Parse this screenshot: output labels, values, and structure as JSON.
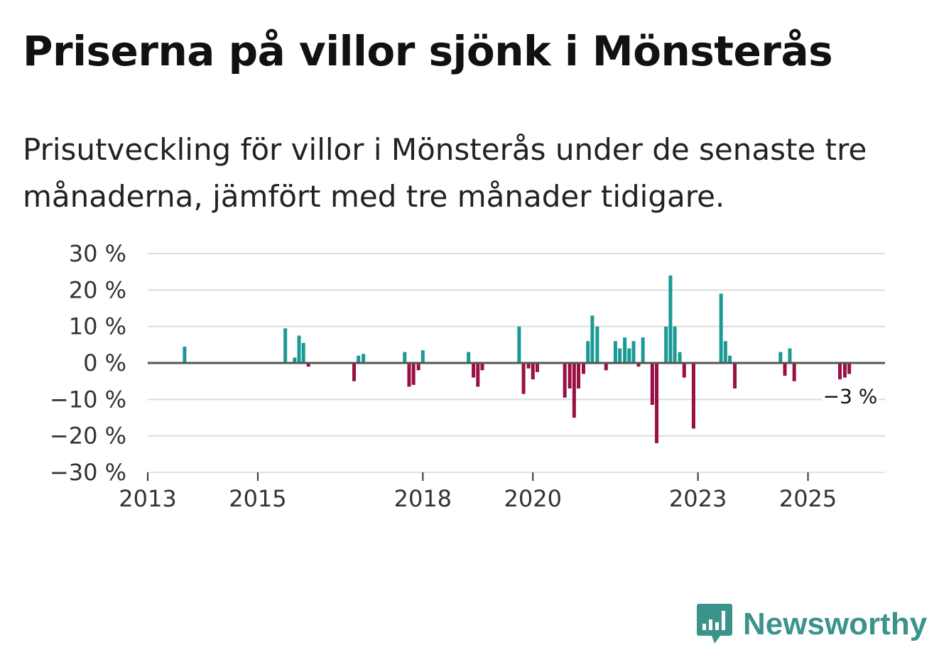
{
  "title": "Priserna på villor sjönk i Mönsterås",
  "subtitle": "Prisutveckling för villor i Mönsterås under de senaste tre månaderna, jämfört med tre månader tidigare.",
  "colors": {
    "positive": "#1a9a94",
    "negative": "#9a0f45",
    "grid": "#dcdcdc",
    "zero": "#555555",
    "brand": "#3a948c"
  },
  "brand": {
    "name": "Newsworthy",
    "icon": "bar-chart-speech-bubble-icon"
  },
  "chart_data": {
    "type": "bar",
    "title": "Priserna på villor sjönk i Mönsterås",
    "xlabel": "",
    "ylabel": "",
    "ylim": [
      -30,
      30
    ],
    "xlim": [
      2013.0,
      2026.4
    ],
    "y_ticks": [
      {
        "value": 30,
        "label": "30 %"
      },
      {
        "value": 20,
        "label": "20 %"
      },
      {
        "value": 10,
        "label": "10 %"
      },
      {
        "value": 0,
        "label": "0 %"
      },
      {
        "value": -10,
        "label": "−10 %"
      },
      {
        "value": -20,
        "label": "−20 %"
      },
      {
        "value": -30,
        "label": "−30 %"
      }
    ],
    "x_ticks": [
      {
        "value": 2013,
        "label": "2013"
      },
      {
        "value": 2015,
        "label": "2015"
      },
      {
        "value": 2018,
        "label": "2018"
      },
      {
        "value": 2020,
        "label": "2020"
      },
      {
        "value": 2023,
        "label": "2023"
      },
      {
        "value": 2025,
        "label": "2025"
      }
    ],
    "end_label": "−3 %",
    "end_value": -3,
    "points": [
      {
        "x": 2013.67,
        "y": 4.5
      },
      {
        "x": 2015.5,
        "y": 9.5
      },
      {
        "x": 2015.67,
        "y": 1.5
      },
      {
        "x": 2015.75,
        "y": 7.5
      },
      {
        "x": 2015.83,
        "y": 5.5
      },
      {
        "x": 2015.92,
        "y": -1.0
      },
      {
        "x": 2016.75,
        "y": -5.0
      },
      {
        "x": 2016.83,
        "y": 2.0
      },
      {
        "x": 2016.92,
        "y": 2.5
      },
      {
        "x": 2017.67,
        "y": 3.0
      },
      {
        "x": 2017.75,
        "y": -6.5
      },
      {
        "x": 2017.83,
        "y": -6.0
      },
      {
        "x": 2017.92,
        "y": -2.0
      },
      {
        "x": 2018.0,
        "y": 3.5
      },
      {
        "x": 2018.83,
        "y": 3.0
      },
      {
        "x": 2018.92,
        "y": -4.0
      },
      {
        "x": 2019.0,
        "y": -6.5
      },
      {
        "x": 2019.08,
        "y": -2.0
      },
      {
        "x": 2019.75,
        "y": 10.0
      },
      {
        "x": 2019.83,
        "y": -8.5
      },
      {
        "x": 2019.92,
        "y": -1.5
      },
      {
        "x": 2020.0,
        "y": -4.5
      },
      {
        "x": 2020.08,
        "y": -2.5
      },
      {
        "x": 2020.58,
        "y": -9.5
      },
      {
        "x": 2020.67,
        "y": -7.0
      },
      {
        "x": 2020.75,
        "y": -15.0
      },
      {
        "x": 2020.83,
        "y": -7.0
      },
      {
        "x": 2020.92,
        "y": -3.0
      },
      {
        "x": 2021.0,
        "y": 6.0
      },
      {
        "x": 2021.08,
        "y": 13.0
      },
      {
        "x": 2021.17,
        "y": 10.0
      },
      {
        "x": 2021.33,
        "y": -2.0
      },
      {
        "x": 2021.5,
        "y": 6.0
      },
      {
        "x": 2021.58,
        "y": 4.0
      },
      {
        "x": 2021.67,
        "y": 7.0
      },
      {
        "x": 2021.75,
        "y": 4.0
      },
      {
        "x": 2021.83,
        "y": 6.0
      },
      {
        "x": 2021.92,
        "y": -1.0
      },
      {
        "x": 2022.0,
        "y": 7.0
      },
      {
        "x": 2022.17,
        "y": -11.5
      },
      {
        "x": 2022.25,
        "y": -22.0
      },
      {
        "x": 2022.42,
        "y": 10.0
      },
      {
        "x": 2022.5,
        "y": 24.0
      },
      {
        "x": 2022.58,
        "y": 10.0
      },
      {
        "x": 2022.67,
        "y": 3.0
      },
      {
        "x": 2022.75,
        "y": -4.0
      },
      {
        "x": 2022.92,
        "y": -18.0
      },
      {
        "x": 2023.42,
        "y": 19.0
      },
      {
        "x": 2023.5,
        "y": 6.0
      },
      {
        "x": 2023.58,
        "y": 2.0
      },
      {
        "x": 2023.67,
        "y": -7.0
      },
      {
        "x": 2024.5,
        "y": 3.0
      },
      {
        "x": 2024.58,
        "y": -3.5
      },
      {
        "x": 2024.67,
        "y": 4.0
      },
      {
        "x": 2024.75,
        "y": -5.0
      },
      {
        "x": 2025.58,
        "y": -4.5
      },
      {
        "x": 2025.67,
        "y": -4.0
      },
      {
        "x": 2025.75,
        "y": -3.0
      }
    ]
  }
}
